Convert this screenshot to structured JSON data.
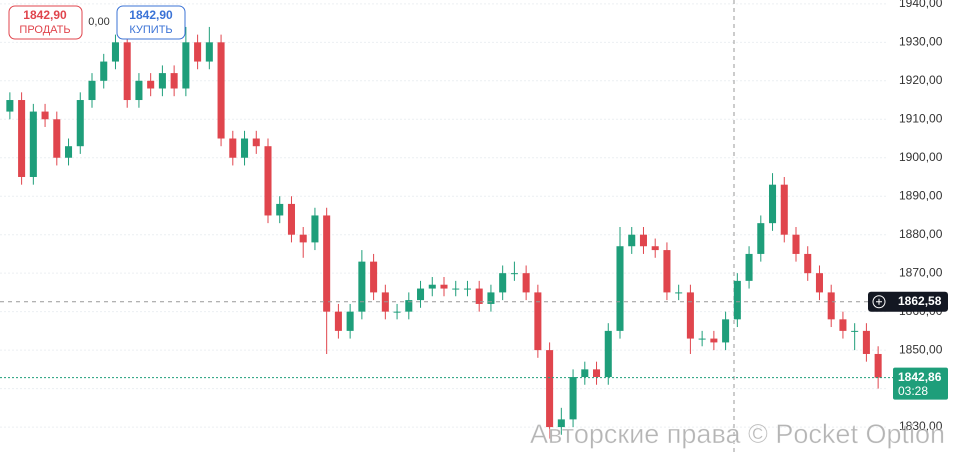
{
  "chart_data": {
    "type": "candlestick",
    "open": [
      1912,
      1915,
      1895,
      1912,
      1910,
      1900,
      1903,
      1915,
      1920,
      1925,
      1930,
      1915,
      1920,
      1918,
      1922,
      1918,
      1930,
      1925,
      1930,
      1905,
      1900,
      1905,
      1903,
      1885,
      1888,
      1880,
      1878,
      1885,
      1860,
      1855,
      1860,
      1873,
      1865,
      1860,
      1860,
      1863,
      1866,
      1867,
      1866,
      1866,
      1866,
      1862,
      1865,
      1870,
      1870,
      1865,
      1850,
      1830,
      1832,
      1843,
      1845,
      1843,
      1855,
      1877,
      1880,
      1877,
      1876,
      1865,
      1865,
      1853,
      1853,
      1852,
      1858,
      1868,
      1875,
      1883,
      1893,
      1880,
      1875,
      1870,
      1865,
      1858,
      1855,
      1855,
      1849
    ],
    "high": [
      1917,
      1917,
      1914,
      1914,
      1912,
      1905,
      1917,
      1922,
      1927,
      1932,
      1932,
      1922,
      1922,
      1924,
      1924,
      1934,
      1932,
      1934,
      1932,
      1907,
      1907,
      1907,
      1905,
      1890,
      1890,
      1882,
      1887,
      1887,
      1862,
      1862,
      1876,
      1875,
      1867,
      1862,
      1865,
      1868,
      1869,
      1869,
      1868,
      1868,
      1868,
      1867,
      1872,
      1873,
      1872,
      1867,
      1852,
      1835,
      1845,
      1847,
      1847,
      1857,
      1882,
      1882,
      1882,
      1879,
      1878,
      1867,
      1867,
      1855,
      1855,
      1860,
      1870,
      1877,
      1885,
      1896,
      1895,
      1882,
      1877,
      1872,
      1867,
      1860,
      1857,
      1857,
      1851
    ],
    "low": [
      1910,
      1893,
      1893,
      1908,
      1898,
      1898,
      1901,
      1913,
      1918,
      1923,
      1913,
      1913,
      1916,
      1916,
      1916,
      1916,
      1923,
      1923,
      1903,
      1898,
      1898,
      1901,
      1883,
      1883,
      1878,
      1874,
      1876,
      1849,
      1853,
      1853,
      1858,
      1863,
      1858,
      1858,
      1858,
      1861,
      1864,
      1864,
      1864,
      1864,
      1860,
      1860,
      1863,
      1868,
      1863,
      1848,
      1827,
      1828,
      1830,
      1841,
      1841,
      1841,
      1853,
      1875,
      1875,
      1874,
      1863,
      1863,
      1849,
      1851,
      1850,
      1850,
      1856,
      1866,
      1873,
      1881,
      1878,
      1873,
      1868,
      1863,
      1856,
      1853,
      1850,
      1847,
      1840
    ],
    "close": [
      1915,
      1895,
      1912,
      1910,
      1900,
      1903,
      1915,
      1920,
      1925,
      1930,
      1915,
      1920,
      1918,
      1922,
      1918,
      1930,
      1925,
      1930,
      1905,
      1900,
      1905,
      1903,
      1885,
      1888,
      1880,
      1878,
      1885,
      1860,
      1855,
      1860,
      1873,
      1865,
      1860,
      1860,
      1863,
      1866,
      1867,
      1866,
      1866,
      1866,
      1862,
      1865,
      1870,
      1870,
      1865,
      1850,
      1830,
      1832,
      1843,
      1845,
      1843,
      1855,
      1877,
      1880,
      1877,
      1876,
      1865,
      1865,
      1853,
      1853,
      1852,
      1858,
      1868,
      1875,
      1883,
      1893,
      1880,
      1875,
      1870,
      1865,
      1858,
      1855,
      1855,
      1849,
      1842.86
    ],
    "up_color": "#1e9e7a",
    "down_color": "#e0454d",
    "ylim": [
      1823,
      1941
    ],
    "yticks": [
      {
        "value": 1830,
        "label": "1830,00"
      },
      {
        "value": 1840,
        "label": "1840,00"
      },
      {
        "value": 1850,
        "label": "1850,00"
      },
      {
        "value": 1860,
        "label": "1860,00"
      },
      {
        "value": 1870,
        "label": "1870,00"
      },
      {
        "value": 1880,
        "label": "1880,00"
      },
      {
        "value": 1890,
        "label": "1890,00"
      },
      {
        "value": 1900,
        "label": "1900,00"
      },
      {
        "value": 1910,
        "label": "1910,00"
      },
      {
        "value": 1920,
        "label": "1920,00"
      },
      {
        "value": 1930,
        "label": "1930,00"
      },
      {
        "value": 1940,
        "label": "1940,00"
      }
    ],
    "grid": true,
    "crosshair": {
      "value": 1862.58,
      "label": "1862,58"
    },
    "current_price": {
      "value": 1842.86,
      "label": "1842,86"
    },
    "timer": "03:28",
    "watermark": "Авторские права © Pocket Option"
  },
  "trade_panel": {
    "sell_price": "1842,90",
    "sell_label": "ПРОДАТЬ",
    "spread": "0,00",
    "buy_price": "1842,90",
    "buy_label": "КУПИТЬ"
  }
}
